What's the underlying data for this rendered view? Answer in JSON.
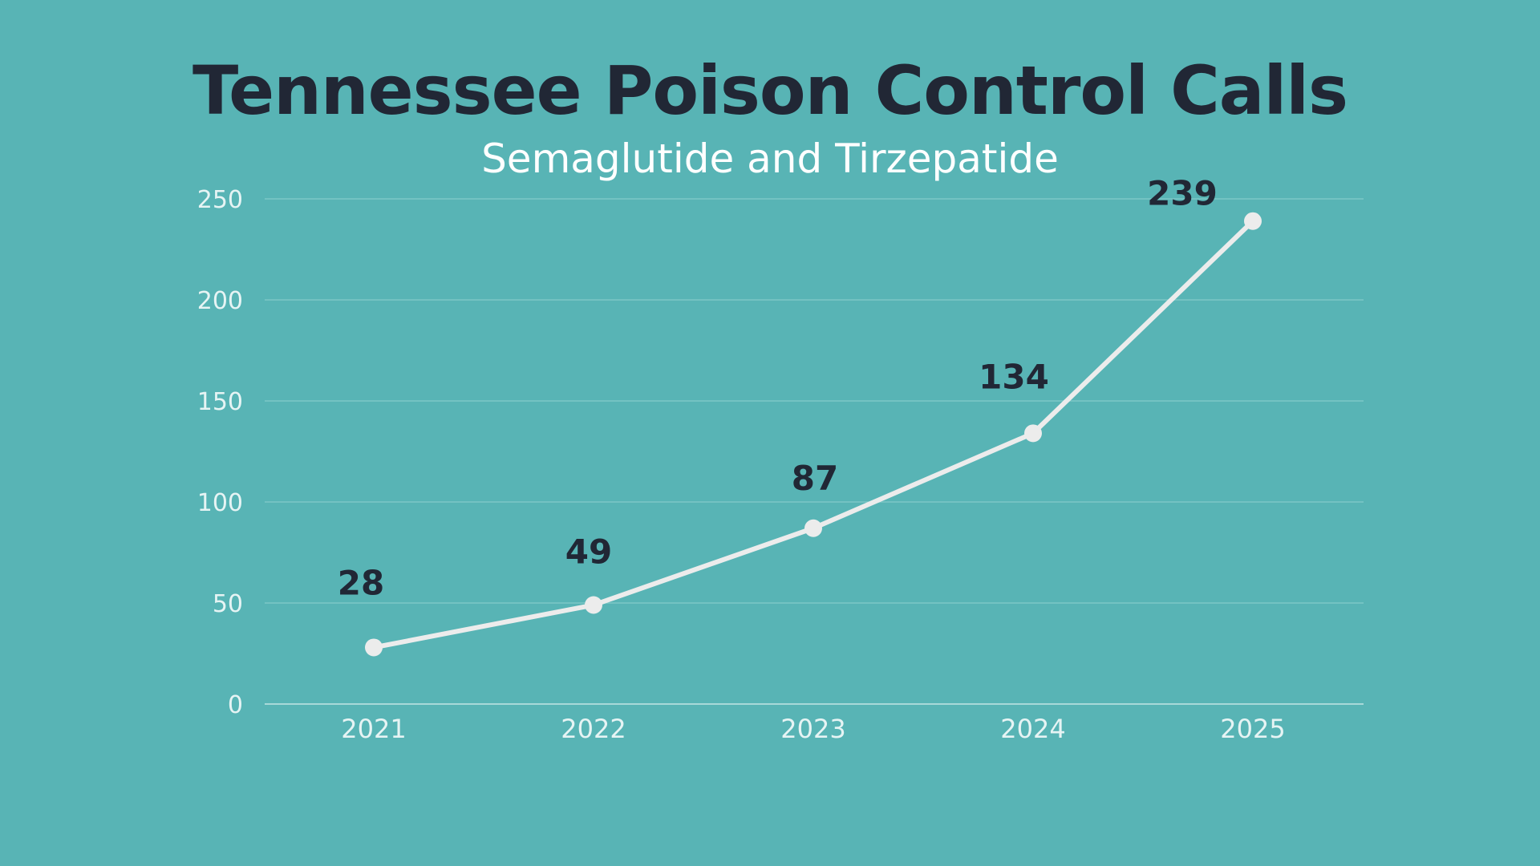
{
  "chart_data": {
    "type": "line",
    "title": "Tennessee Poison Control Calls",
    "subtitle": "Semaglutide and Tirzepatide",
    "xlabel": "",
    "ylabel": "",
    "categories": [
      "2021",
      "2022",
      "2023",
      "2024",
      "2025"
    ],
    "series": [
      {
        "values": [
          28,
          49,
          87,
          134,
          239
        ]
      }
    ],
    "data_labels": [
      "28",
      "49",
      "87",
      "134",
      "239"
    ],
    "ylim": [
      0,
      250
    ],
    "yticks": [
      0,
      50,
      100,
      150,
      200,
      250
    ],
    "ytick_labels": [
      "0",
      "50",
      "100",
      "150",
      "200",
      "250"
    ],
    "grid": true,
    "legend": "none",
    "colors": {
      "background": "#58b4b5",
      "line": "#ececec",
      "title": "#212735",
      "labels": "#212735",
      "ticks": "#e6f4f4"
    }
  }
}
